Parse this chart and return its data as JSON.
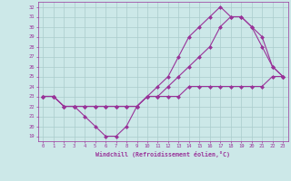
{
  "xlabel": "Windchill (Refroidissement éolien,°C)",
  "bg_color": "#cce8e8",
  "grid_color": "#aacccc",
  "line_color": "#993399",
  "xlim": [
    -0.5,
    23.5
  ],
  "ylim": [
    18.5,
    32.5
  ],
  "xticks": [
    0,
    1,
    2,
    3,
    4,
    5,
    6,
    7,
    8,
    9,
    10,
    11,
    12,
    13,
    14,
    15,
    16,
    17,
    18,
    19,
    20,
    21,
    22,
    23
  ],
  "yticks": [
    19,
    20,
    21,
    22,
    23,
    24,
    25,
    26,
    27,
    28,
    29,
    30,
    31,
    32
  ],
  "curve1_x": [
    0,
    1,
    2,
    3,
    4,
    5,
    6,
    7,
    8,
    9,
    10,
    11,
    12,
    13,
    14,
    15,
    16,
    17,
    18,
    19,
    20,
    21,
    22,
    23
  ],
  "curve1_y": [
    23,
    23,
    22,
    22,
    21,
    20,
    19,
    19,
    20,
    22,
    23,
    24,
    25,
    27,
    29,
    30,
    31,
    32,
    31,
    31,
    30,
    29,
    26,
    25
  ],
  "curve2_x": [
    0,
    1,
    2,
    3,
    4,
    5,
    6,
    7,
    8,
    9,
    10,
    11,
    12,
    13,
    14,
    15,
    16,
    17,
    18,
    19,
    20,
    21,
    22,
    23
  ],
  "curve2_y": [
    23,
    23,
    22,
    22,
    22,
    22,
    22,
    22,
    22,
    22,
    23,
    23,
    23,
    23,
    24,
    24,
    24,
    24,
    24,
    24,
    24,
    24,
    25,
    25
  ],
  "curve3_x": [
    0,
    1,
    2,
    3,
    4,
    5,
    6,
    7,
    8,
    9,
    10,
    11,
    12,
    13,
    14,
    15,
    16,
    17,
    18,
    19,
    20,
    21,
    22,
    23
  ],
  "curve3_y": [
    23,
    23,
    22,
    22,
    22,
    22,
    22,
    22,
    22,
    22,
    23,
    23,
    24,
    25,
    26,
    27,
    28,
    30,
    31,
    31,
    30,
    28,
    26,
    25
  ]
}
